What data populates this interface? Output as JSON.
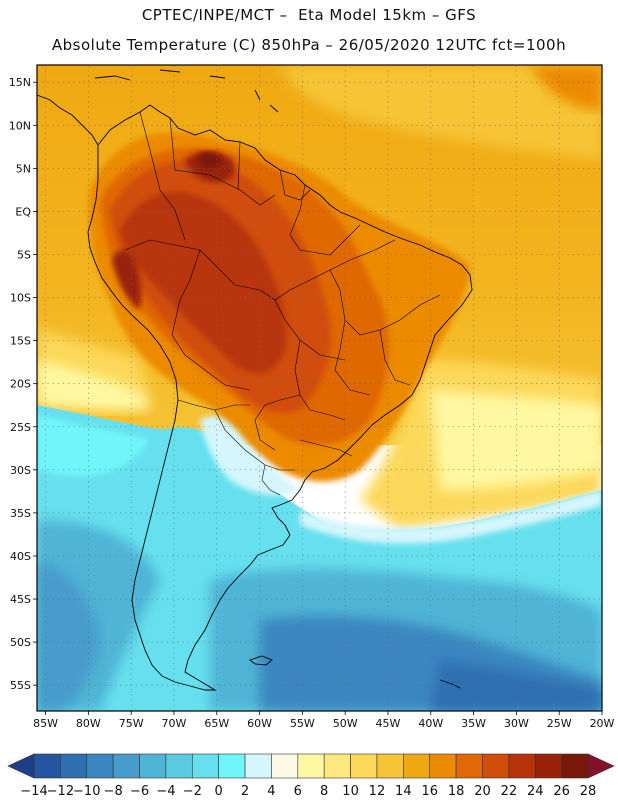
{
  "header": {
    "line1": "CPTEC/INPE/MCT –  Eta Model 15km – GFS",
    "line2": "Absolute Temperature (C) 850hPa – 26/05/2020 12UTC fct=100h"
  },
  "map": {
    "lon_range": [
      -86,
      -20
    ],
    "lat_range": [
      -58,
      17
    ],
    "lat_ticks": [
      "15N",
      "10N",
      "5N",
      "EQ",
      "5S",
      "10S",
      "15S",
      "20S",
      "25S",
      "30S",
      "35S",
      "40S",
      "45S",
      "50S",
      "55S"
    ],
    "lat_values": [
      15,
      10,
      5,
      0,
      -5,
      -10,
      -15,
      -20,
      -25,
      -30,
      -35,
      -40,
      -45,
      -50,
      -55
    ],
    "lon_ticks": [
      "85W",
      "80W",
      "75W",
      "70W",
      "65W",
      "60W",
      "55W",
      "50W",
      "45W",
      "40W",
      "35W",
      "30W",
      "25W",
      "20W"
    ],
    "lon_values": [
      -85,
      -80,
      -75,
      -70,
      -65,
      -60,
      -55,
      -50,
      -45,
      -40,
      -35,
      -30,
      -25,
      -20
    ]
  },
  "colorbar": {
    "colors": [
      "#1e3e8a",
      "#2554a0",
      "#2e6fb2",
      "#3a86c0",
      "#469ccc",
      "#50b4d6",
      "#5ccbe2",
      "#66e0ee",
      "#70f6fa",
      "#d4f6fc",
      "#fffae6",
      "#fff8a2",
      "#ffe880",
      "#fcd85a",
      "#f6c436",
      "#f0a812",
      "#ec8a06",
      "#e06806",
      "#d04e0a",
      "#b83408",
      "#9a2208",
      "#7a1808",
      "#84102a"
    ],
    "labels": [
      "-14",
      "-12",
      "-10",
      "-8",
      "-6",
      "-4",
      "-2",
      "0",
      "2",
      "4",
      "6",
      "8",
      "10",
      "12",
      "14",
      "16",
      "18",
      "20",
      "22",
      "24",
      "26",
      "28"
    ]
  }
}
